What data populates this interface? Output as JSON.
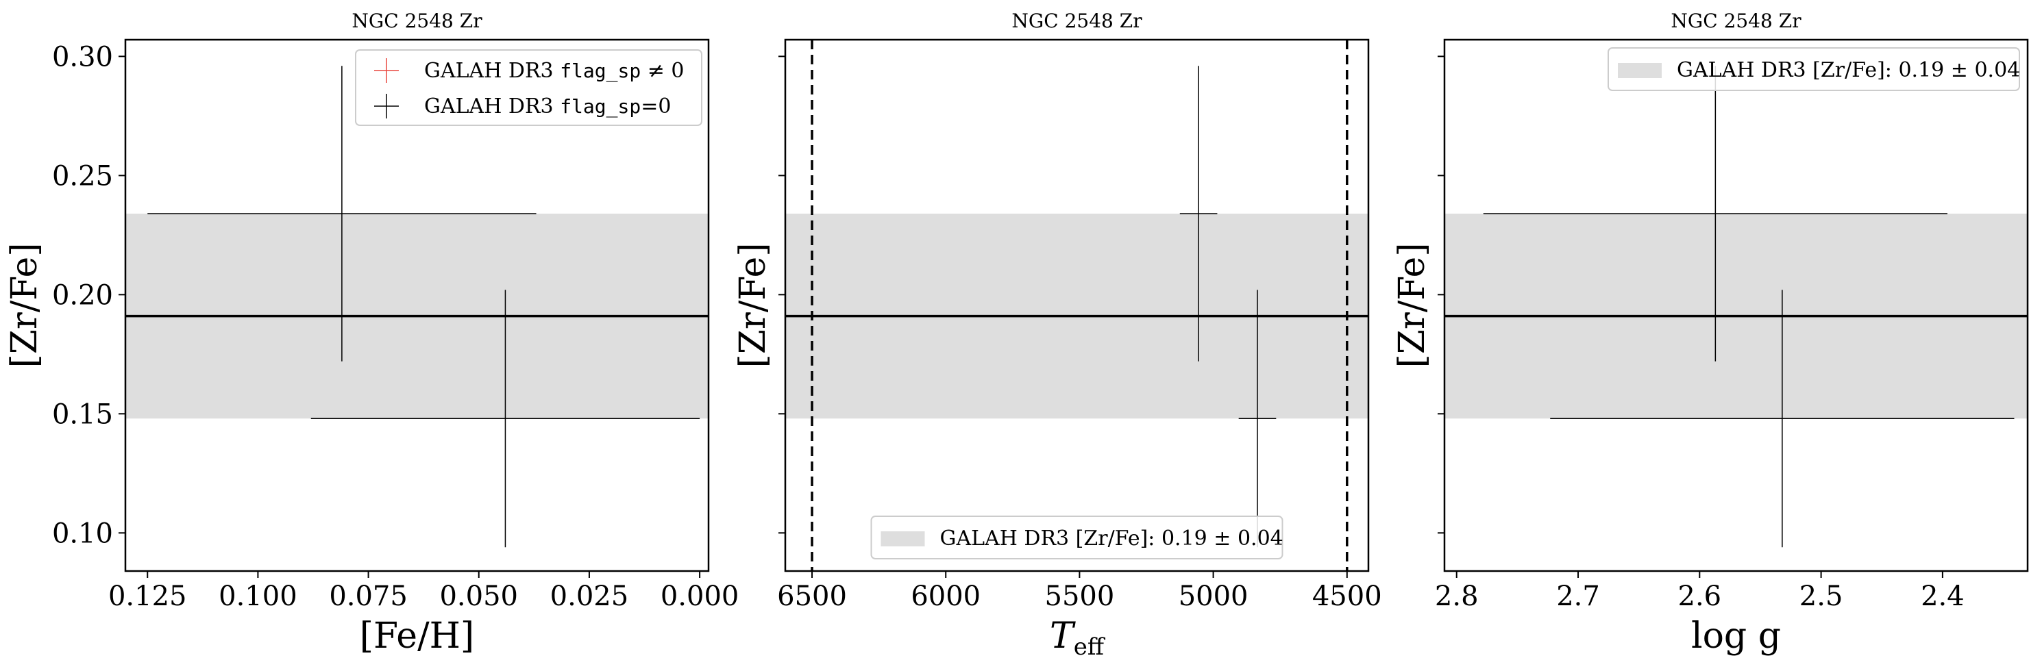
{
  "chart_data": [
    {
      "type": "scatter",
      "title": "NGC 2548 Zr",
      "xlabel": "[Fe/H]",
      "ylabel": "[Zr/Fe]",
      "xlim": [
        0.13,
        -0.002
      ],
      "ylim": [
        0.084,
        0.307
      ],
      "x_ticks": [
        {
          "value": 0.125,
          "label": "0.125"
        },
        {
          "value": 0.1,
          "label": "0.100"
        },
        {
          "value": 0.075,
          "label": "0.075"
        },
        {
          "value": 0.05,
          "label": "0.050"
        },
        {
          "value": 0.025,
          "label": "0.025"
        },
        {
          "value": 0.0,
          "label": "0.000"
        }
      ],
      "y_ticks": [
        {
          "value": 0.1,
          "label": "0.10"
        },
        {
          "value": 0.15,
          "label": "0.15"
        },
        {
          "value": 0.2,
          "label": "0.20"
        },
        {
          "value": 0.25,
          "label": "0.25"
        },
        {
          "value": 0.3,
          "label": "0.30"
        }
      ],
      "show_y_tick_labels": true,
      "band": {
        "center": 0.191,
        "low": 0.148,
        "high": 0.234,
        "color": "#dedede"
      },
      "points": [
        {
          "x": 0.081,
          "y": 0.234,
          "xerr": 0.044,
          "yerr": 0.062
        },
        {
          "x": 0.044,
          "y": 0.148,
          "xerr": 0.044,
          "yerr": 0.054
        }
      ],
      "vlines": [],
      "legend": {
        "position": "upper right",
        "entries": [
          {
            "marker": "cross",
            "color": "#e8473f",
            "text": "GALAH DR3 ",
            "mono": "flag_sp",
            "suffix": " ≠ 0"
          },
          {
            "marker": "cross",
            "color": "#000000",
            "text": "GALAH DR3 ",
            "mono": "flag_sp",
            "suffix": "=0"
          }
        ]
      }
    },
    {
      "type": "scatter",
      "title": "NGC 2548 Zr",
      "xlabel": "T",
      "xlabel_sub": "eff",
      "ylabel": "[Zr/Fe]",
      "xlim": [
        6600,
        4420
      ],
      "ylim": [
        0.084,
        0.307
      ],
      "x_ticks": [
        {
          "value": 6500,
          "label": "6500"
        },
        {
          "value": 6000,
          "label": "6000"
        },
        {
          "value": 5500,
          "label": "5500"
        },
        {
          "value": 5000,
          "label": "5000"
        },
        {
          "value": 4500,
          "label": "4500"
        }
      ],
      "y_ticks": [
        {
          "value": 0.1,
          "label": ""
        },
        {
          "value": 0.15,
          "label": ""
        },
        {
          "value": 0.2,
          "label": ""
        },
        {
          "value": 0.25,
          "label": ""
        },
        {
          "value": 0.3,
          "label": ""
        }
      ],
      "show_y_tick_labels": false,
      "band": {
        "center": 0.191,
        "low": 0.148,
        "high": 0.234,
        "color": "#dedede"
      },
      "points": [
        {
          "x": 5055,
          "y": 0.234,
          "xerr": 70,
          "yerr": 0.062
        },
        {
          "x": 4835,
          "y": 0.148,
          "xerr": 70,
          "yerr": 0.054
        }
      ],
      "vlines": [
        6500,
        4500
      ],
      "legend": {
        "position": "lower center",
        "entries": [
          {
            "marker": "patch",
            "color": "#dedede",
            "text": "GALAH DR3 [Zr/Fe]: 0.19 ± 0.04"
          }
        ]
      }
    },
    {
      "type": "scatter",
      "title": "NGC 2548 Zr",
      "xlabel": "log g",
      "ylabel": "[Zr/Fe]",
      "xlim": [
        2.81,
        2.33
      ],
      "ylim": [
        0.084,
        0.307
      ],
      "x_ticks": [
        {
          "value": 2.8,
          "label": "2.8"
        },
        {
          "value": 2.7,
          "label": "2.7"
        },
        {
          "value": 2.6,
          "label": "2.6"
        },
        {
          "value": 2.5,
          "label": "2.5"
        },
        {
          "value": 2.4,
          "label": "2.4"
        }
      ],
      "y_ticks": [
        {
          "value": 0.1,
          "label": ""
        },
        {
          "value": 0.15,
          "label": ""
        },
        {
          "value": 0.2,
          "label": ""
        },
        {
          "value": 0.25,
          "label": ""
        },
        {
          "value": 0.3,
          "label": ""
        }
      ],
      "show_y_tick_labels": false,
      "band": {
        "center": 0.191,
        "low": 0.148,
        "high": 0.234,
        "color": "#dedede"
      },
      "points": [
        {
          "x": 2.587,
          "y": 0.234,
          "xerr": 0.191,
          "yerr": 0.062
        },
        {
          "x": 2.532,
          "y": 0.148,
          "xerr": 0.191,
          "yerr": 0.054
        }
      ],
      "vlines": [],
      "legend": {
        "position": "upper right",
        "entries": [
          {
            "marker": "patch",
            "color": "#dedede",
            "text": "GALAH DR3 [Zr/Fe]: 0.19 ± 0.04"
          }
        ]
      }
    }
  ]
}
